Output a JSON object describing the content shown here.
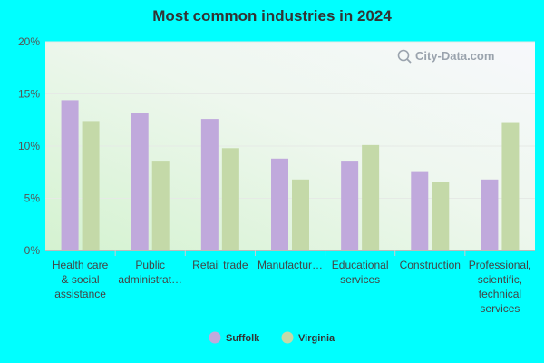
{
  "chart_data": {
    "type": "bar",
    "title": "Most common industries in 2024",
    "categories": [
      [
        "Health care",
        "& social",
        "assistance"
      ],
      [
        "Public",
        "administrat…"
      ],
      [
        "Retail trade"
      ],
      [
        "Manufactur…"
      ],
      [
        "Educational",
        "services"
      ],
      [
        "Construction"
      ],
      [
        "Professional,",
        "scientific,",
        "technical",
        "services"
      ]
    ],
    "series": [
      {
        "name": "Suffolk",
        "color": "#c0a9dc",
        "values": [
          14.4,
          13.2,
          12.6,
          8.8,
          8.6,
          7.6,
          6.8
        ]
      },
      {
        "name": "Virginia",
        "color": "#c4d9a8",
        "values": [
          12.4,
          8.6,
          9.8,
          6.8,
          10.1,
          6.6,
          12.3
        ]
      }
    ],
    "y_ticks": [
      "0%",
      "5%",
      "10%",
      "15%",
      "20%"
    ],
    "ylim": [
      0,
      20
    ],
    "grid": true,
    "legend_position": "bottom-center",
    "watermark": "City-Data.com"
  }
}
